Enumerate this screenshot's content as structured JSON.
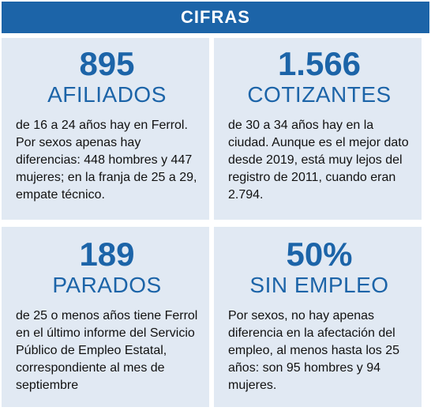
{
  "header": {
    "title": "CIFRAS"
  },
  "cards": [
    {
      "number": "895",
      "label": "AFILIADOS",
      "text": "de 16 a 24 años hay en Ferrol. Por sexos apenas hay diferencias: 448 hombres y 447 mujeres; en la franja de 25 a 29, empate técnico."
    },
    {
      "number": "1.566",
      "label": "COTIZANTES",
      "text": "de 30 a 34 años hay en la ciudad. Aunque es el mejor dato desde 2019, está muy lejos del registro de 2011, cuando eran 2.794."
    },
    {
      "number": "189",
      "label": "PARADOS",
      "text": "de 25 o menos años tiene Ferrol en el último informe del Servicio Público de Empleo Estatal, correspondiente al mes de septiembre"
    },
    {
      "number": "50%",
      "label": "SIN EMPLEO",
      "text": "Por sexos, no hay apenas diferencia en la afectación del empleo, al menos hasta los 25 años: son 95 hombres y 94 mujeres."
    }
  ],
  "colors": {
    "accent": "#1c64a8",
    "card_background": "#e1e9f3",
    "text": "#111111"
  }
}
